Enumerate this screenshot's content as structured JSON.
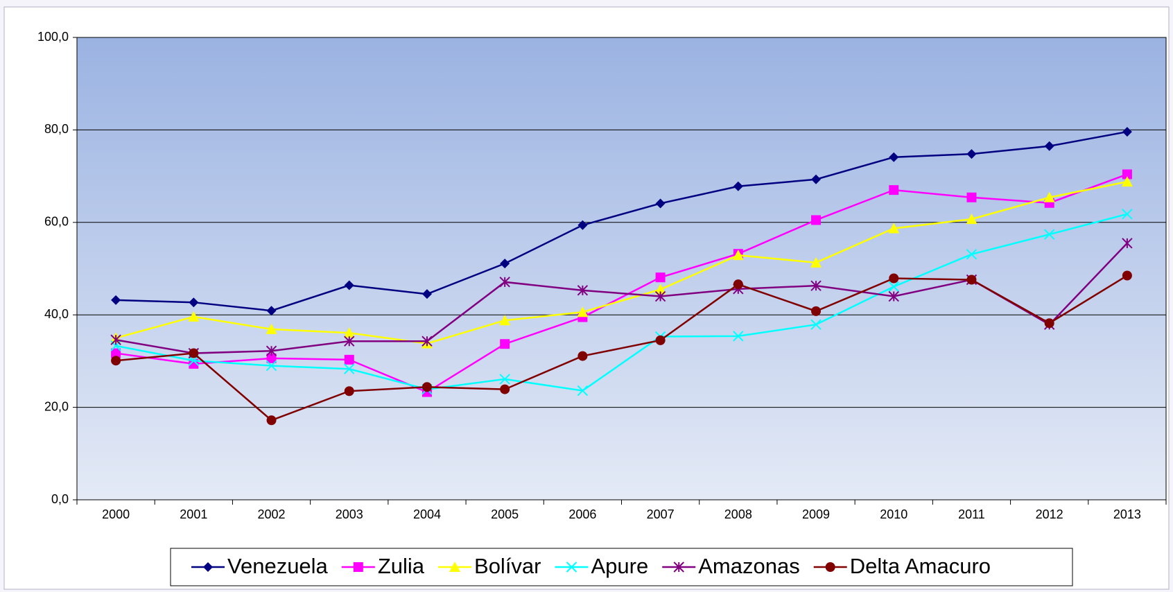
{
  "chart_data": {
    "type": "line",
    "categories": [
      "2000",
      "2001",
      "2002",
      "2003",
      "2004",
      "2005",
      "2006",
      "2007",
      "2008",
      "2009",
      "2010",
      "2011",
      "2012",
      "2013"
    ],
    "ylim": [
      0,
      100
    ],
    "yticks": [
      {
        "value": 0,
        "label": "0,0"
      },
      {
        "value": 20,
        "label": "20,0"
      },
      {
        "value": 40,
        "label": "40,0"
      },
      {
        "value": 60,
        "label": "60,0"
      },
      {
        "value": 80,
        "label": "80,0"
      },
      {
        "value": 100,
        "label": "100,0"
      }
    ],
    "grid": true,
    "legend": "bottom",
    "series": [
      {
        "name": "Venezuela",
        "color": "#000080",
        "marker": "diamond",
        "values": [
          43.2,
          42.7,
          40.9,
          46.4,
          44.5,
          51.1,
          59.4,
          64.1,
          67.8,
          69.3,
          74.1,
          74.8,
          76.5,
          79.6
        ]
      },
      {
        "name": "Zulia",
        "color": "#ff00ff",
        "marker": "square",
        "values": [
          31.7,
          29.4,
          30.6,
          30.3,
          23.3,
          33.7,
          39.5,
          48.1,
          53.2,
          60.5,
          67.0,
          65.4,
          64.2,
          70.4
        ]
      },
      {
        "name": "Bolívar",
        "color": "#ffff00",
        "marker": "triangle",
        "values": [
          35.0,
          39.6,
          36.9,
          36.1,
          33.8,
          38.8,
          40.6,
          45.5,
          52.9,
          51.3,
          58.7,
          60.7,
          65.4,
          68.8
        ]
      },
      {
        "name": "Apure",
        "color": "#00ffff",
        "marker": "x",
        "values": [
          33.3,
          30.1,
          29.0,
          28.3,
          23.9,
          26.1,
          23.6,
          35.3,
          35.4,
          37.9,
          46.1,
          53.1,
          57.4,
          61.8
        ]
      },
      {
        "name": "Amazonas",
        "color": "#800080",
        "marker": "star",
        "values": [
          34.6,
          31.7,
          32.2,
          34.3,
          34.3,
          47.1,
          45.3,
          44.0,
          45.6,
          46.3,
          44.0,
          47.6,
          37.9,
          55.5
        ]
      },
      {
        "name": "Delta Amacuro",
        "color": "#800000",
        "marker": "circle",
        "values": [
          30.1,
          31.7,
          17.2,
          23.5,
          24.4,
          23.9,
          31.1,
          34.5,
          46.6,
          40.8,
          47.9,
          47.6,
          38.2,
          48.5
        ]
      }
    ]
  }
}
